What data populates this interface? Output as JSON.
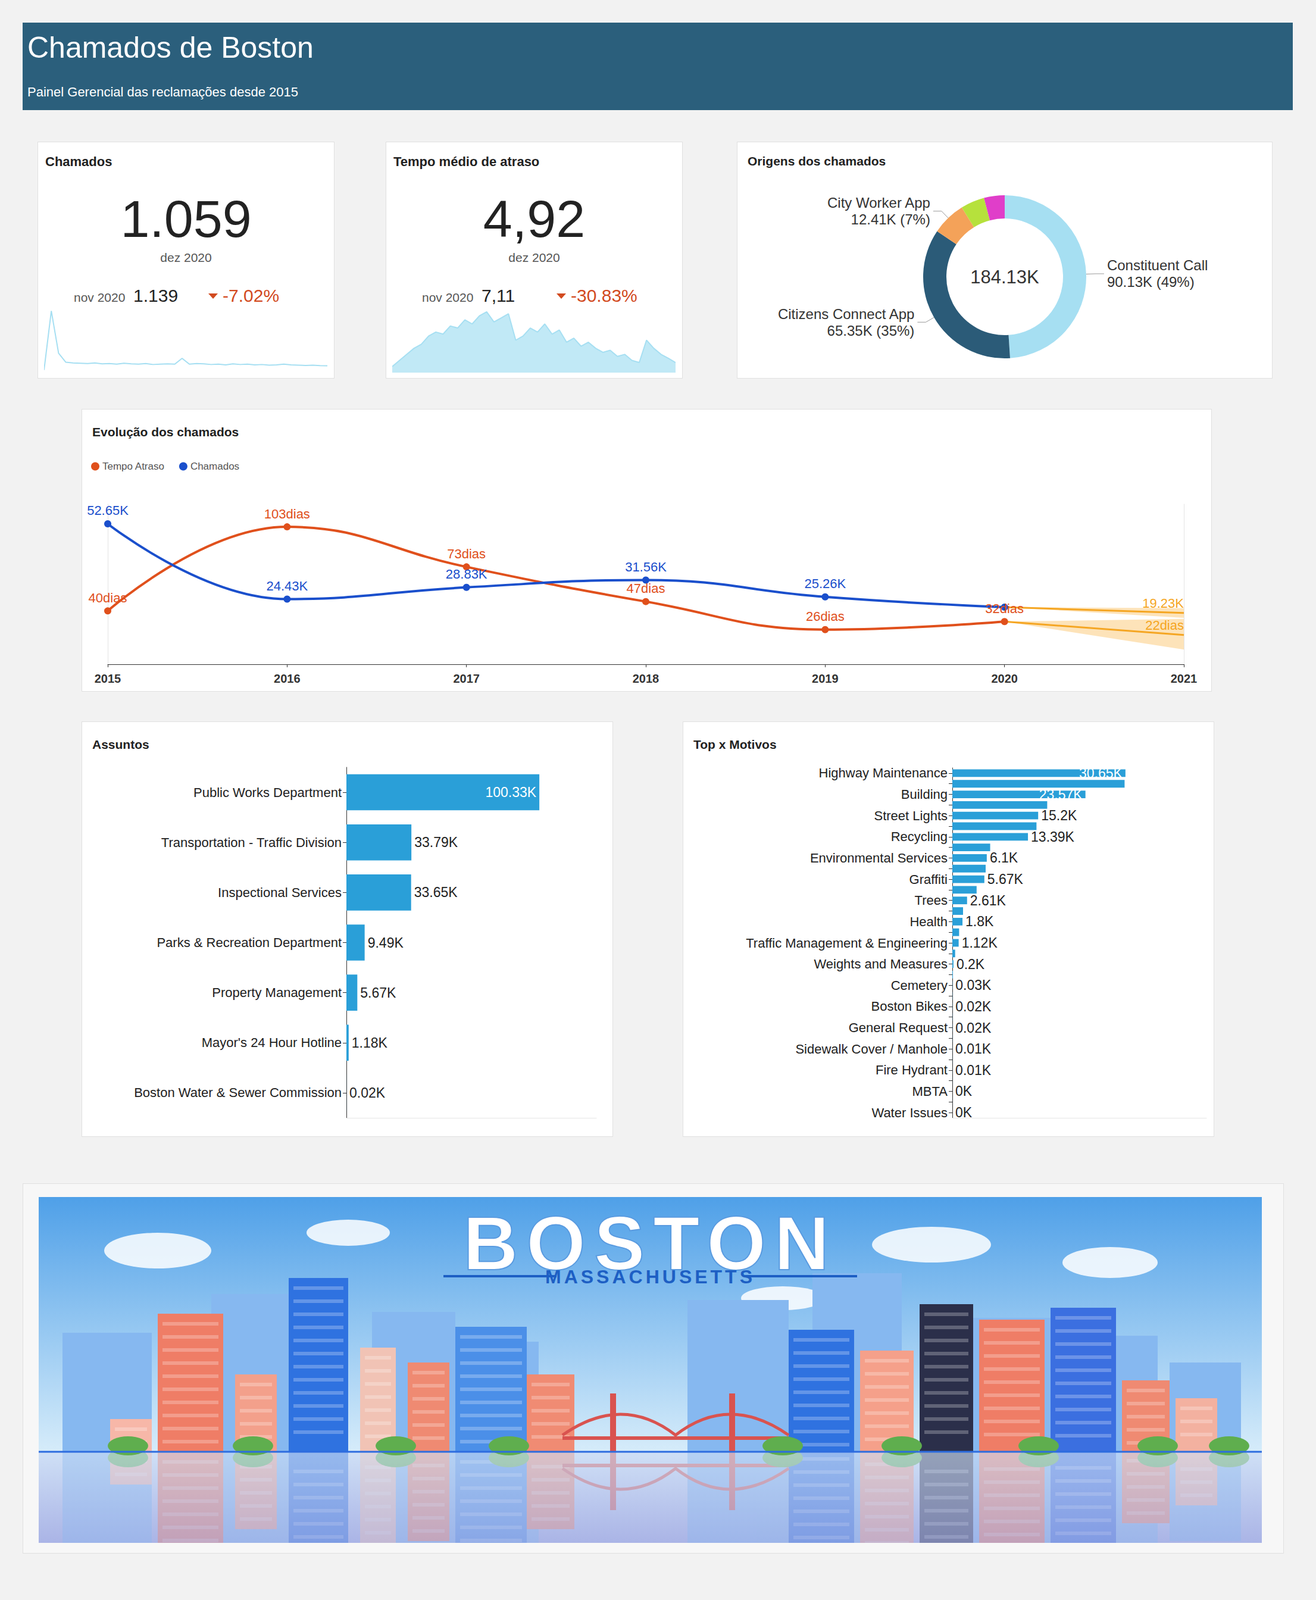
{
  "header": {
    "title": "Chamados de Boston",
    "subtitle": "Painel Gerencial das reclamações desde 2015"
  },
  "kpis": [
    {
      "title": "Chamados",
      "value": "1.059",
      "period": "dez 2020",
      "previous_period": "nov 2020",
      "previous_value": "1.139",
      "change": "-7.02%",
      "trend": {
        "type": "line",
        "color": "#a6dff2",
        "tick_labels": false,
        "ylim": [
          0,
          10000
        ],
        "values": [
          400,
          9500,
          3000,
          1600,
          1500,
          1450,
          1400,
          1500,
          1350,
          1400,
          1300,
          1450,
          1350,
          1300,
          1400,
          1250,
          1300,
          1350,
          1300,
          2200,
          1300,
          1400,
          1350,
          1250,
          1300,
          1200,
          1350,
          1250,
          1300,
          1200,
          1250,
          1150,
          1200,
          1300,
          1200,
          1150,
          1100,
          1139,
          1080,
          1059
        ]
      }
    },
    {
      "title": "Tempo médio de atraso",
      "value": "4,92",
      "period": "dez 2020",
      "previous_period": "nov 2020",
      "previous_value": "7,11",
      "change": "-30.83%",
      "trend": {
        "type": "area",
        "color": "#a6dff2",
        "tick_labels": false,
        "ylim": [
          0,
          32
        ],
        "values": [
          3,
          6,
          9,
          12,
          14,
          18,
          20,
          19,
          23,
          22,
          26,
          24,
          28,
          30,
          25,
          27,
          29,
          16,
          18,
          22,
          20,
          24,
          19,
          21,
          15,
          17,
          13,
          15,
          12,
          10,
          11,
          8,
          9,
          6,
          5,
          16,
          12,
          9,
          7.11,
          4.92
        ]
      }
    }
  ],
  "chart_data": [
    {
      "type": "pie",
      "title": "Origens dos chamados",
      "categories": [
        "Constituent Call",
        "Citizens Connect App",
        "City Worker App",
        null,
        null
      ],
      "values": [
        90130,
        65350,
        12410,
        8700,
        7540
      ],
      "value_labels": [
        "90.13K (49%)",
        "65.35K (35%)",
        "12.41K (7%)",
        null,
        null
      ],
      "colors": [
        "#a6dff2",
        "#2b5b78",
        "#f4a259",
        "#b6e13c",
        "#e03ec9"
      ],
      "total_label": "184.13K",
      "data_labels": true
    },
    {
      "type": "line",
      "title": "Evolução dos chamados",
      "categories": [
        "2015",
        "2016",
        "2017",
        "2018",
        "2019",
        "2020",
        "2021"
      ],
      "series": [
        {
          "name": "Tempo Atraso",
          "color": "#e0501c",
          "axis": "y2",
          "values": [
            40,
            103,
            73,
            47,
            26,
            32,
            null
          ],
          "value_labels": [
            "40dias",
            "103dias",
            "73dias",
            "47dias",
            "26dias",
            "32dias",
            null
          ],
          "forecast": [
            null,
            null,
            null,
            null,
            null,
            32,
            22
          ],
          "forecast_labels": [
            null,
            null,
            null,
            null,
            null,
            null,
            "22dias"
          ],
          "forecast_low": [
            null,
            null,
            null,
            null,
            null,
            32,
            11
          ],
          "forecast_high": [
            null,
            null,
            null,
            null,
            null,
            32,
            34
          ]
        },
        {
          "name": "Chamados",
          "color": "#1a4fcc",
          "values": [
            52650,
            24430,
            28830,
            31560,
            25260,
            21400,
            null
          ],
          "value_labels": [
            "52.65K",
            "24.43K",
            "28.83K",
            "31.56K",
            "25.26K",
            null,
            null
          ],
          "forecast": [
            null,
            null,
            null,
            null,
            null,
            21400,
            19230
          ],
          "forecast_labels": [
            null,
            null,
            null,
            null,
            null,
            null,
            "19.23K"
          ],
          "forecast_low": [
            null,
            null,
            null,
            null,
            null,
            21400,
            17400
          ],
          "forecast_high": [
            null,
            null,
            null,
            null,
            null,
            21400,
            21000
          ]
        }
      ],
      "ylim": [
        0,
        60000
      ],
      "y2lim": [
        0,
        120
      ],
      "legend": "top-left",
      "data_labels": true,
      "tick_labels": "x",
      "grid": false
    },
    {
      "type": "bar",
      "title": "Assuntos",
      "orientation": "horizontal",
      "categories": [
        "Public Works Department",
        "Transportation - Traffic Division",
        "Inspectional Services",
        "Parks & Recreation Department",
        "Property Management",
        "Mayor's 24 Hour Hotline",
        "Boston Water & Sewer Commission"
      ],
      "values": [
        100330,
        33790,
        33650,
        9490,
        5670,
        1180,
        20
      ],
      "value_labels": [
        "100.33K",
        "33.79K",
        "33.65K",
        "9.49K",
        "5.67K",
        "1.18K",
        "0.02K"
      ],
      "color": "#2a9fd8",
      "xlim": [
        0,
        130000
      ],
      "data_labels": true,
      "tick_labels": "y",
      "grid": false
    },
    {
      "type": "bar",
      "title": "Top x Motivos",
      "orientation": "horizontal",
      "categories": [
        "Highway Maintenance",
        null,
        "Building",
        null,
        "Street Lights",
        null,
        "Recycling",
        null,
        "Environmental Services",
        null,
        "Graffiti",
        null,
        "Trees",
        null,
        "Health",
        null,
        "Traffic Management & Engineering",
        null,
        "Weights and Measures",
        null,
        "Cemetery",
        null,
        "Boston Bikes",
        null,
        "General Request",
        null,
        "Sidewalk Cover / Manhole",
        null,
        "Fire Hydrant",
        null,
        "MBTA",
        null,
        "Water Issues"
      ],
      "values": [
        30650,
        30500,
        23570,
        16800,
        15200,
        14900,
        13390,
        6700,
        6100,
        5900,
        5670,
        4300,
        2610,
        1900,
        1800,
        1200,
        1120,
        500,
        200,
        100,
        30,
        25,
        20,
        20,
        20,
        15,
        10,
        10,
        10,
        5,
        0,
        2,
        0
      ],
      "value_labels": [
        "30.65K",
        null,
        "23.57K",
        null,
        "15.2K",
        null,
        "13.39K",
        null,
        "6.1K",
        null,
        "5.67K",
        null,
        "2.61K",
        null,
        "1.8K",
        null,
        "1.12K",
        null,
        "0.2K",
        null,
        "0.03K",
        null,
        "0.02K",
        null,
        "0.02K",
        null,
        "0.01K",
        null,
        "0.01K",
        null,
        "0K",
        null,
        "0K"
      ],
      "color": "#2a9fd8",
      "xlim": [
        0,
        45000
      ],
      "data_labels": true,
      "tick_labels": "y",
      "grid": false
    }
  ],
  "banner": {
    "title": "BOSTON",
    "subtitle": "MASSACHUSETTS"
  }
}
